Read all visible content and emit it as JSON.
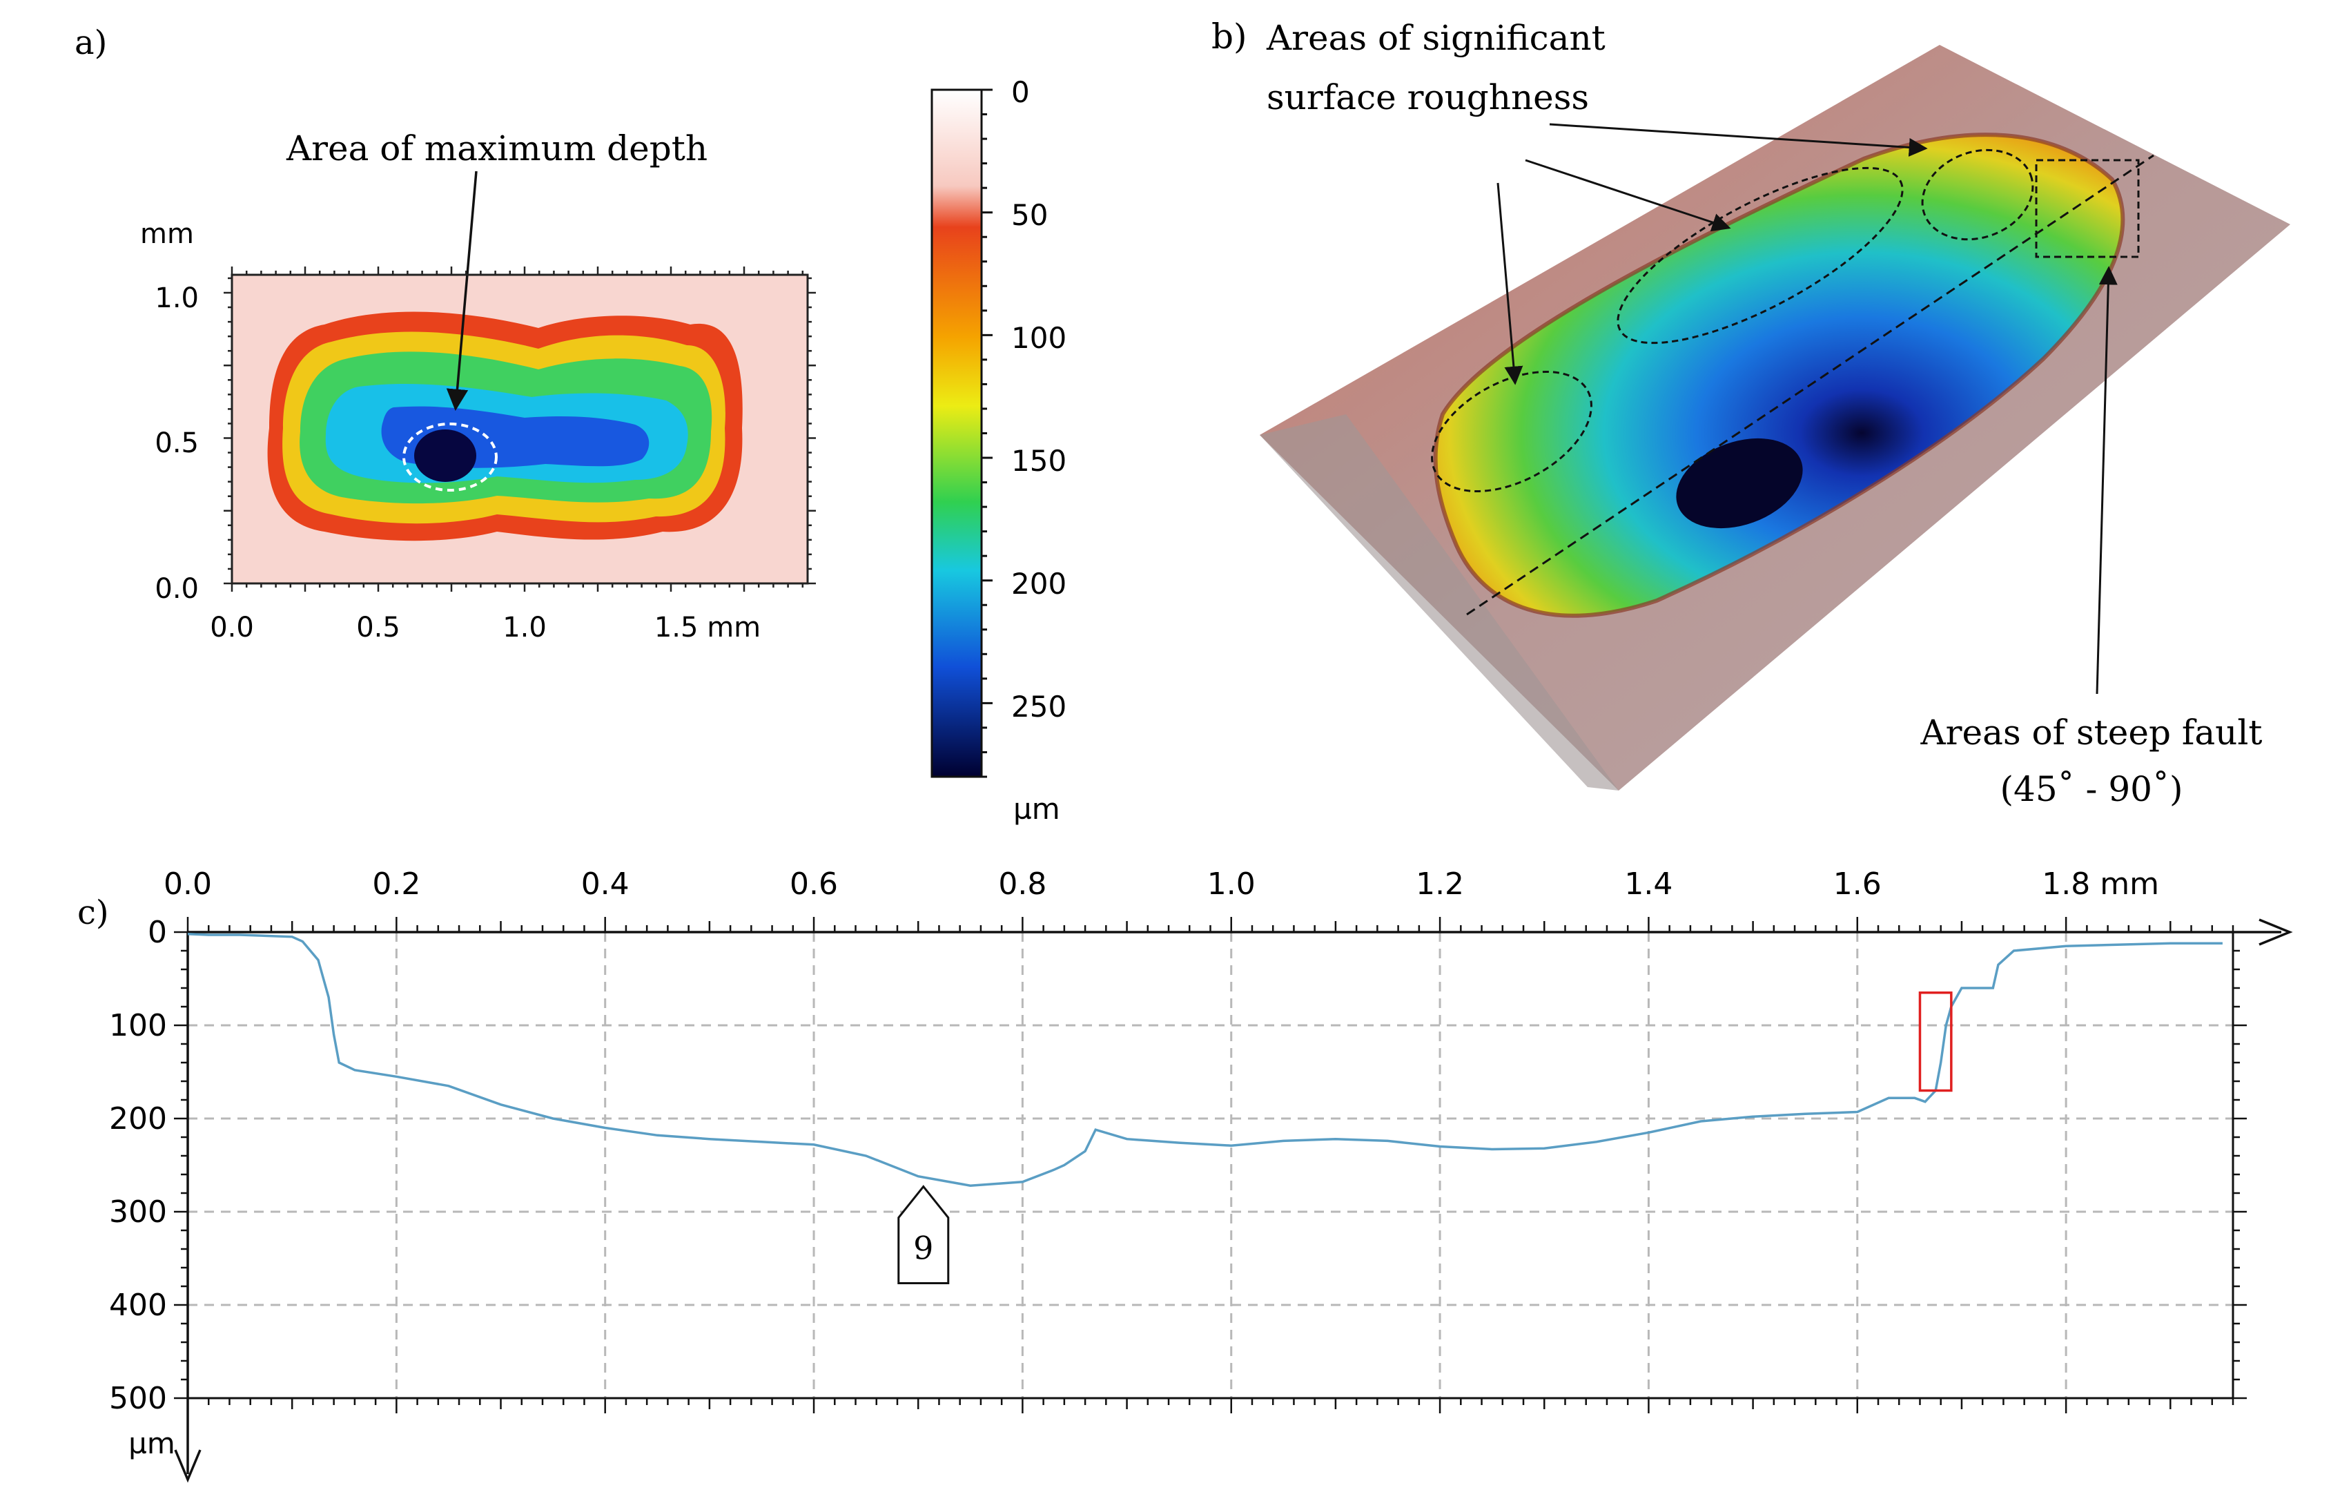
{
  "panel_a": {
    "label": "a)",
    "annotation": "Area of maximum depth",
    "y_unit": "mm",
    "x_ticks": [
      "0.0",
      "0.5",
      "1.0",
      "1.5 mm"
    ],
    "y_ticks": [
      "1.0",
      "0.5",
      "0.0"
    ]
  },
  "colorbar": {
    "ticks": [
      "0",
      "50",
      "100",
      "150",
      "200",
      "250"
    ],
    "unit": "µm",
    "range": [
      0,
      280
    ],
    "colors": [
      "#ffffff",
      "#f7c9c0",
      "#e8421c",
      "#f5a300",
      "#ecec14",
      "#30d050",
      "#18c8e0",
      "#1050d8",
      "#000030"
    ]
  },
  "panel_b": {
    "label": "b)",
    "annotation_roughness_line1": "Areas of significant",
    "annotation_roughness_line2": "surface roughness",
    "annotation_fault_line1": "Areas of steep fault",
    "annotation_fault_line2": "(45˚ - 90˚)"
  },
  "chart_data": {
    "type": "line",
    "label": "c)",
    "x_tick_labels": [
      "0.0",
      "0.2",
      "0.4",
      "0.6",
      "0.8",
      "1.0",
      "1.2",
      "1.4",
      "1.6",
      "1.8 mm"
    ],
    "y_tick_labels": [
      "0",
      "100",
      "200",
      "300",
      "400",
      "500"
    ],
    "y_unit": "µm",
    "xlim": [
      0,
      1.96
    ],
    "ylim": [
      0,
      500
    ],
    "y_inverted": true,
    "grid": true,
    "line_color": "#5a9ec4",
    "highlight_color": "#e02020",
    "marker_label": "9",
    "marker_x": 0.705,
    "marker_y": 273,
    "highlight_x": [
      1.66,
      1.69
    ],
    "highlight_y": [
      65,
      170
    ],
    "x": [
      0.0,
      0.02,
      0.05,
      0.1,
      0.11,
      0.125,
      0.135,
      0.14,
      0.145,
      0.16,
      0.2,
      0.25,
      0.3,
      0.35,
      0.4,
      0.45,
      0.5,
      0.55,
      0.6,
      0.65,
      0.7,
      0.75,
      0.8,
      0.83,
      0.84,
      0.86,
      0.87,
      0.9,
      0.95,
      1.0,
      1.05,
      1.1,
      1.15,
      1.2,
      1.25,
      1.3,
      1.35,
      1.4,
      1.45,
      1.5,
      1.55,
      1.6,
      1.63,
      1.655,
      1.665,
      1.675,
      1.68,
      1.685,
      1.69,
      1.7,
      1.73,
      1.735,
      1.75,
      1.8,
      1.9,
      1.95
    ],
    "y": [
      2,
      3,
      3,
      5,
      10,
      30,
      70,
      110,
      140,
      148,
      155,
      165,
      185,
      200,
      210,
      218,
      222,
      225,
      228,
      240,
      262,
      272,
      268,
      255,
      250,
      235,
      212,
      222,
      226,
      229,
      224,
      222,
      224,
      230,
      233,
      232,
      225,
      215,
      203,
      198,
      195,
      193,
      178,
      178,
      182,
      170,
      140,
      100,
      80,
      60,
      60,
      35,
      20,
      15,
      12,
      12
    ]
  }
}
